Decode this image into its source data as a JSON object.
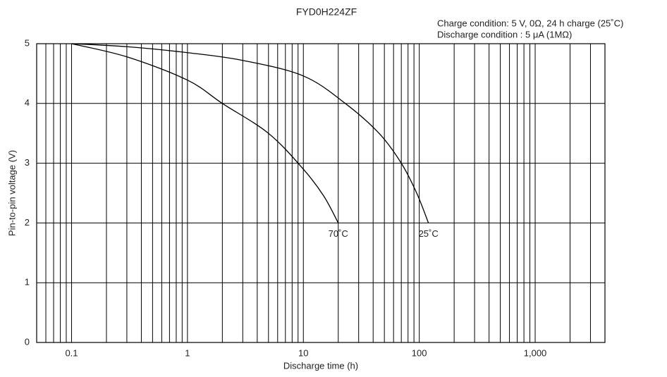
{
  "chart_data": {
    "type": "line",
    "title": "FYD0H224ZF",
    "annotations": [
      "Charge condition: 5 V, 0Ω, 24 h charge (25˚C)",
      "Discharge condition : 5 μA (1MΩ)"
    ],
    "x_label": "Discharge time (h)",
    "y_label": "Pin-to-pin voltage (V)",
    "xscale": "log",
    "xlim": [
      0.05,
      4000
    ],
    "ylim": [
      0,
      5
    ],
    "xticks": [
      0.1,
      1,
      10,
      100,
      {
        "value": 1000,
        "label": "1,000"
      }
    ],
    "x_minor_grid": [
      0.06,
      0.07,
      0.08,
      0.09,
      0.2,
      0.3,
      0.4,
      0.5,
      0.6,
      0.7,
      0.8,
      0.9,
      2,
      3,
      4,
      5,
      6,
      7,
      8,
      9,
      20,
      30,
      40,
      50,
      60,
      70,
      80,
      90,
      200,
      300,
      400,
      500,
      600,
      700,
      800,
      900,
      2000,
      3000
    ],
    "yticks": [
      0,
      1,
      2,
      3,
      4,
      5
    ],
    "grid": true,
    "series": [
      {
        "name": "70˚C",
        "color": "#000000",
        "x": [
          0.1,
          0.3,
          1,
          2,
          5,
          10,
          15,
          20
        ],
        "values": [
          5,
          4.78,
          4.39,
          4.0,
          3.5,
          2.9,
          2.45,
          2.0
        ]
      },
      {
        "name": "25˚C",
        "color": "#000000",
        "x": [
          0.1,
          0.3,
          1,
          3,
          10,
          23,
          45,
          70,
          95,
          120
        ],
        "values": [
          5,
          4.95,
          4.85,
          4.72,
          4.46,
          4.0,
          3.5,
          3.0,
          2.5,
          2.0
        ]
      }
    ]
  }
}
